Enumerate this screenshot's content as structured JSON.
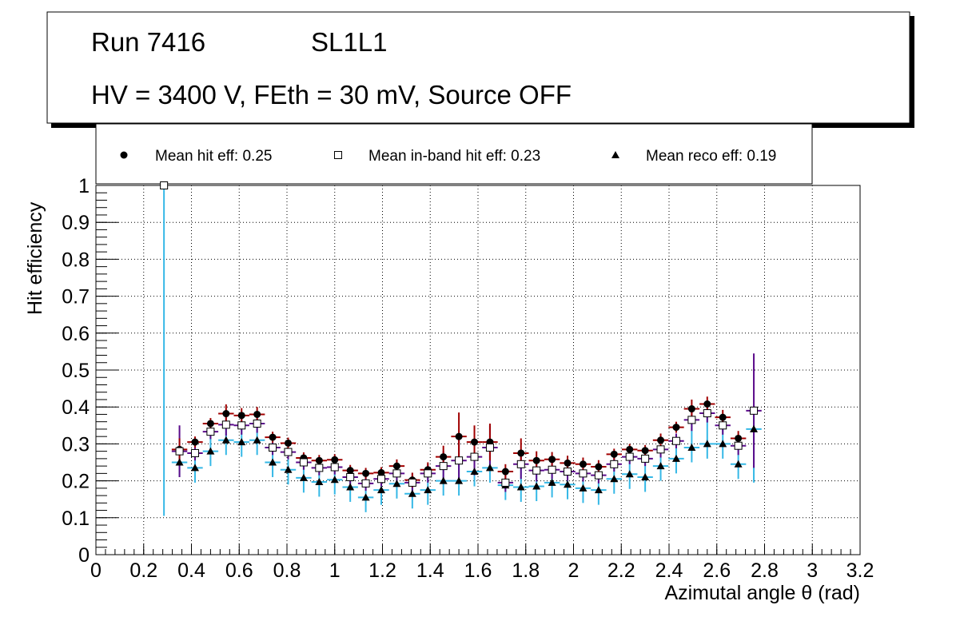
{
  "header": {
    "run_label": "Run 7416",
    "layer_label": "SL1L1",
    "conditions": "HV = 3400 V, FEth = 30 mV, Source OFF"
  },
  "legend": {
    "hit_label": "Mean hit  eff: 0.25",
    "inband_label": "Mean in-band hit eff: 0.23",
    "reco_label": "Mean reco eff: 0.19"
  },
  "colors": {
    "hit_err": "#a00000",
    "inband_err": "#5a0a8a",
    "reco_err": "#35b8e6",
    "grid": "#000000"
  },
  "chart_data": {
    "type": "scatter",
    "title": "",
    "xlabel": "Azimutal angle θ (rad)",
    "ylabel": "Hit efficiency",
    "xlim": [
      0,
      3.2
    ],
    "ylim": [
      0,
      1
    ],
    "grid": true,
    "legend_position": "top",
    "x_ticks": [
      0,
      0.2,
      0.4,
      0.6,
      0.8,
      1,
      1.2,
      1.4,
      1.6,
      1.8,
      2,
      2.2,
      2.4,
      2.6,
      2.8,
      3,
      3.2
    ],
    "x_tick_labels": [
      "0",
      "0.2",
      "0.4",
      "0.6",
      "0.8",
      "1",
      "1.2",
      "1.4",
      "1.6",
      "1.8",
      "2",
      "2.2",
      "2.4",
      "2.6",
      "2.8",
      "3",
      "3.2"
    ],
    "y_ticks": [
      0,
      0.1,
      0.2,
      0.3,
      0.4,
      0.5,
      0.6,
      0.7,
      0.8,
      0.9,
      1
    ],
    "y_tick_labels": [
      "0",
      "0.1",
      "0.2",
      "0.3",
      "0.4",
      "0.5",
      "0.6",
      "0.7",
      "0.8",
      "0.9",
      "1"
    ],
    "bin_half_width": 0.0325,
    "x": [
      0.285,
      0.35,
      0.415,
      0.48,
      0.545,
      0.61,
      0.675,
      0.74,
      0.805,
      0.87,
      0.935,
      1.0,
      1.065,
      1.13,
      1.195,
      1.26,
      1.325,
      1.39,
      1.455,
      1.52,
      1.585,
      1.65,
      1.715,
      1.78,
      1.845,
      1.91,
      1.975,
      2.04,
      2.105,
      2.17,
      2.235,
      2.3,
      2.365,
      2.43,
      2.495,
      2.56,
      2.625,
      2.69,
      2.755
    ],
    "series": [
      {
        "name": "Mean hit eff",
        "marker": "circle",
        "values": [
          1.0,
          0.285,
          0.305,
          0.355,
          0.382,
          0.377,
          0.38,
          0.318,
          0.302,
          0.262,
          0.255,
          0.257,
          0.228,
          0.22,
          0.222,
          0.24,
          0.202,
          0.23,
          0.265,
          0.32,
          0.305,
          0.305,
          0.225,
          0.275,
          0.255,
          0.258,
          0.248,
          0.245,
          0.238,
          0.272,
          0.285,
          0.282,
          0.31,
          0.345,
          0.395,
          0.408,
          0.372,
          0.315,
          0.39
        ],
        "errors": [
          0.0,
          0.03,
          0.015,
          0.015,
          0.025,
          0.02,
          0.02,
          0.015,
          0.015,
          0.015,
          0.015,
          0.015,
          0.015,
          0.015,
          0.015,
          0.018,
          0.02,
          0.02,
          0.03,
          0.065,
          0.045,
          0.05,
          0.02,
          0.04,
          0.025,
          0.02,
          0.02,
          0.018,
          0.018,
          0.015,
          0.015,
          0.015,
          0.018,
          0.015,
          0.025,
          0.02,
          0.02,
          0.02,
          0.0
        ]
      },
      {
        "name": "Mean in-band hit eff",
        "marker": "open-square",
        "values": [
          1.0,
          0.28,
          0.275,
          0.333,
          0.352,
          0.35,
          0.355,
          0.29,
          0.278,
          0.25,
          0.235,
          0.237,
          0.21,
          0.193,
          0.205,
          0.22,
          0.195,
          0.22,
          0.24,
          0.255,
          0.265,
          0.29,
          0.195,
          0.245,
          0.228,
          0.23,
          0.225,
          0.22,
          0.215,
          0.245,
          0.265,
          0.26,
          0.285,
          0.308,
          0.365,
          0.383,
          0.35,
          0.295,
          0.39
        ],
        "errors": [
          0.0,
          0.07,
          0.02,
          0.02,
          0.03,
          0.025,
          0.025,
          0.02,
          0.02,
          0.02,
          0.02,
          0.02,
          0.02,
          0.02,
          0.02,
          0.022,
          0.025,
          0.025,
          0.04,
          0.06,
          0.05,
          0.06,
          0.025,
          0.04,
          0.03,
          0.025,
          0.025,
          0.022,
          0.022,
          0.02,
          0.02,
          0.02,
          0.022,
          0.02,
          0.03,
          0.025,
          0.025,
          0.025,
          0.155
        ]
      },
      {
        "name": "Mean reco eff",
        "marker": "triangle",
        "values": [
          1.0,
          0.25,
          0.235,
          0.28,
          0.31,
          0.305,
          0.31,
          0.25,
          0.23,
          0.208,
          0.197,
          0.203,
          0.183,
          0.155,
          0.175,
          0.192,
          0.165,
          0.175,
          0.2,
          0.2,
          0.225,
          0.235,
          0.188,
          0.183,
          0.185,
          0.195,
          0.19,
          0.18,
          0.175,
          0.205,
          0.218,
          0.21,
          0.24,
          0.26,
          0.29,
          0.3,
          0.3,
          0.245,
          0.34
        ]
      }
    ]
  }
}
